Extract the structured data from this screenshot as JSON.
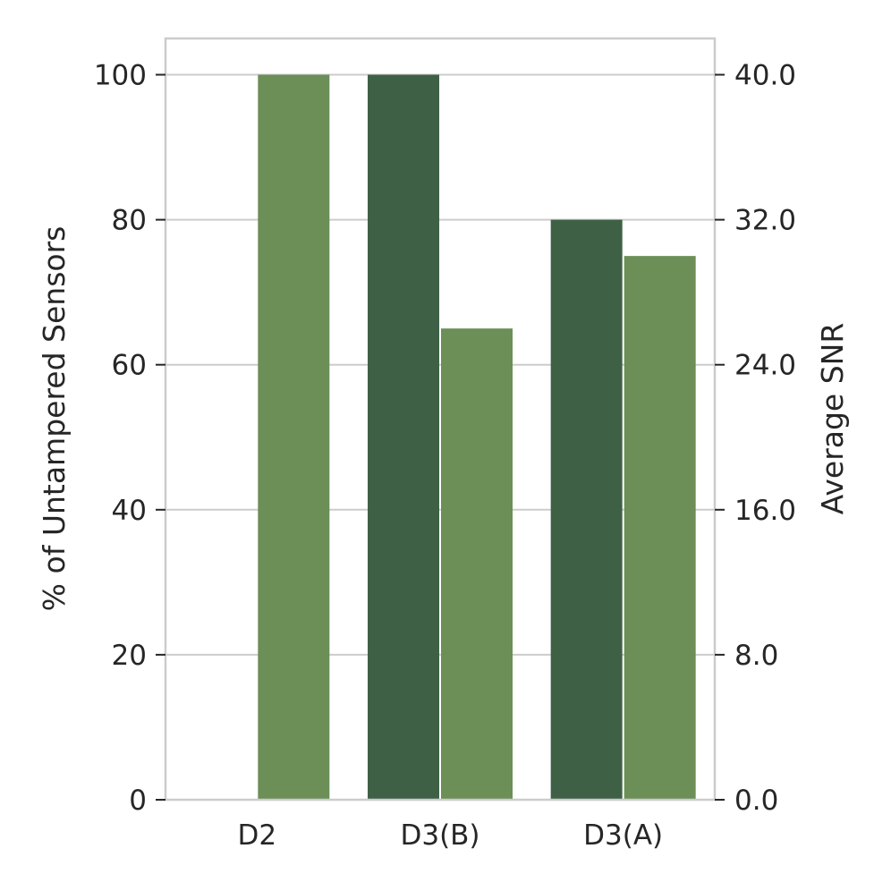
{
  "chart_data": {
    "type": "bar",
    "categories": [
      "D2",
      "D3(B)",
      "D3(A)"
    ],
    "series": [
      {
        "axis": "left",
        "color": "#3e6146",
        "values": [
          0,
          100,
          80
        ]
      },
      {
        "axis": "right",
        "color": "#6b8f57",
        "values": [
          40.0,
          26.0,
          30.0
        ]
      }
    ],
    "ylabel": "% of Untampered Sensors",
    "ylabel_right": "Average SNR",
    "ylim": [
      0,
      105
    ],
    "ylim_right": [
      0,
      42
    ],
    "yticks": [
      "0",
      "20",
      "40",
      "60",
      "80",
      "100"
    ],
    "yticks_right": [
      "0.0",
      "8.0",
      "16.0",
      "24.0",
      "32.0",
      "40.0"
    ],
    "grid": true,
    "legend": "none"
  }
}
